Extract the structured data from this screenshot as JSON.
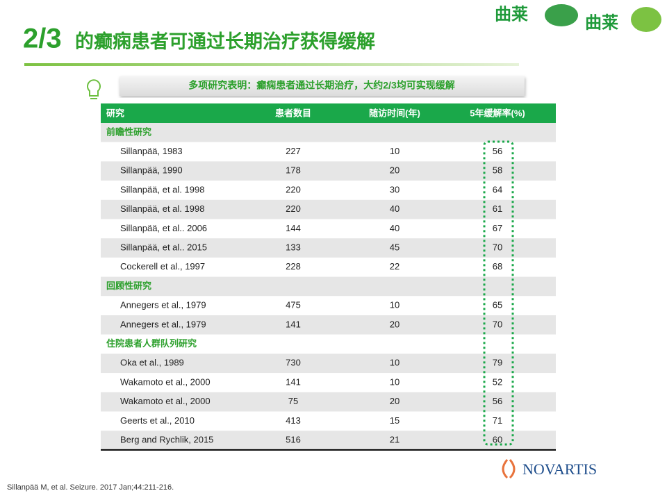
{
  "title": {
    "number": "2/3",
    "text": "的癫痫患者可通过长期治疗获得缓解"
  },
  "logos": {
    "brand_1": "曲莱",
    "brand_2": "曲莱",
    "company": "NOVARTIS"
  },
  "callout": "多项研究表明：癫痫患者通过长期治疗，大约2/3均可实现缓解",
  "table": {
    "header": [
      "研究",
      "患者数目",
      "随访时间(年)",
      "5年缓解率(%)"
    ],
    "sections": [
      {
        "title": "前瞻性研究",
        "rows": [
          [
            "Sillanpää, 1983",
            227,
            10,
            56
          ],
          [
            "Sillanpää, 1990",
            178,
            20,
            58
          ],
          [
            "Sillanpää,  et al. 1998",
            220,
            30,
            64
          ],
          [
            "Sillanpää, et al. 1998",
            220,
            40,
            61
          ],
          [
            "Sillanpää, et al.. 2006",
            144,
            40,
            67
          ],
          [
            "Sillanpää, et al.. 2015",
            133,
            45,
            70
          ],
          [
            "Cockerell et al., 1997",
            228,
            22,
            68
          ]
        ]
      },
      {
        "title": "回顾性研究",
        "rows": [
          [
            "Annegers et al., 1979",
            475,
            10,
            65
          ],
          [
            "Annegers et al., 1979",
            141,
            20,
            70
          ]
        ]
      },
      {
        "title": "住院患者人群队列研究",
        "rows": [
          [
            "Oka et al., 1989",
            730,
            10,
            79
          ],
          [
            "Wakamoto et al., 2000",
            141,
            10,
            52
          ],
          [
            "Wakamoto et al., 2000",
            75,
            20,
            56
          ],
          [
            "Geerts et al., 2010",
            413,
            15,
            71
          ],
          [
            "Berg and Rychlik, 2015",
            516,
            21,
            60
          ]
        ]
      }
    ]
  },
  "footnote": "Sillanpää M, et al. Seizure. 2017 Jan;44:211-216."
}
